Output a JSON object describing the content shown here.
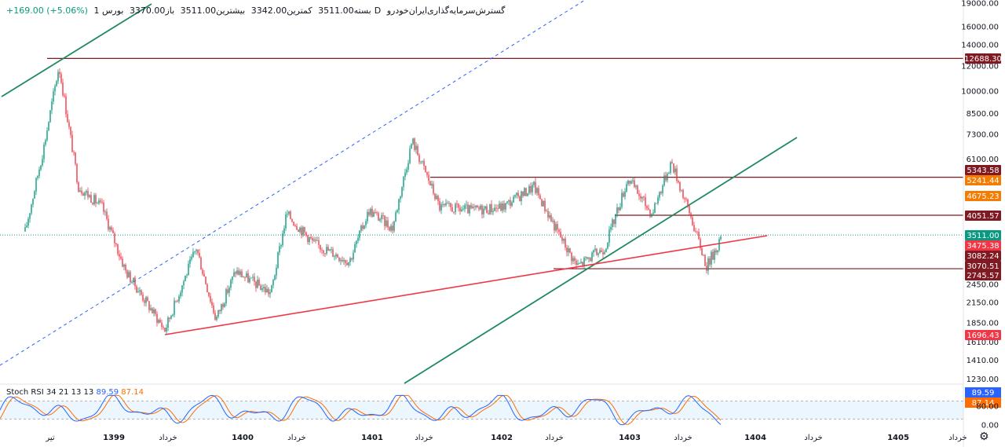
{
  "header": {
    "symbol": "گسترش‌سرمایه‌گذاری‌ایران‌خودرو",
    "interval": "1D",
    "exchange": "بورس",
    "open": "باز3370.00",
    "high": "بیشترین3511.00",
    "low": "کمترین3342.00",
    "close": "بسته3511.00",
    "change": "+169.00 (+5.06%)"
  },
  "indicator": {
    "name": "Stoch RSI",
    "params": "34 21 13 13",
    "k_value": "89.59",
    "d_value": "87.14",
    "k_color": "#2962ff",
    "d_color": "#ff6d00"
  },
  "chart_data": {
    "type": "candlestick",
    "price_scale": "log",
    "y_ticks": [
      "19000.00",
      "16000.00",
      "14000.00",
      "12000.00",
      "10000.00",
      "8500.00",
      "7300.00",
      "6100.00",
      "2450.00",
      "2150.00",
      "1850.00",
      "1610.00",
      "1410.00",
      "1230.00"
    ],
    "price_labels": [
      {
        "value": "12688.30",
        "color": "#801922"
      },
      {
        "value": "5343.58",
        "color": "#801922"
      },
      {
        "value": "5241.44",
        "color": "#f57c00"
      },
      {
        "value": "4675.23",
        "color": "#f57c00"
      },
      {
        "value": "4051.57",
        "color": "#801922"
      },
      {
        "value": "3511.00",
        "color": "#089981"
      },
      {
        "value": "3475.38",
        "color": "#f23645"
      },
      {
        "value": "3082.24",
        "color": "#801922"
      },
      {
        "value": "3070.51",
        "color": "#801922"
      },
      {
        "value": "2745.57",
        "color": "#801922"
      },
      {
        "value": "1696.43",
        "color": "#f23645"
      }
    ],
    "horizontal_levels": [
      12688.3,
      5343.58,
      4051.57,
      2745.57
    ],
    "x_labels": [
      "تیر",
      "1399",
      "خرداد",
      "1400",
      "خرداد",
      "1401",
      "خرداد",
      "1402",
      "خرداد",
      "1403",
      "خرداد",
      "1404",
      "خرداد",
      "1405",
      "خرداد"
    ],
    "stoch_ticks": [
      "80.00",
      "0.00"
    ],
    "stoch_bands": [
      80,
      20
    ],
    "trendlines": [
      {
        "name": "red-support",
        "color": "#f23645"
      },
      {
        "name": "green-rising",
        "color": "#1e8a5e"
      },
      {
        "name": "green-top",
        "color": "#1e8a5e"
      },
      {
        "name": "blue-channel",
        "color": "#2962ff"
      }
    ],
    "up_color": "#089981",
    "down_color": "#f23645",
    "last_price": 3511.0
  }
}
